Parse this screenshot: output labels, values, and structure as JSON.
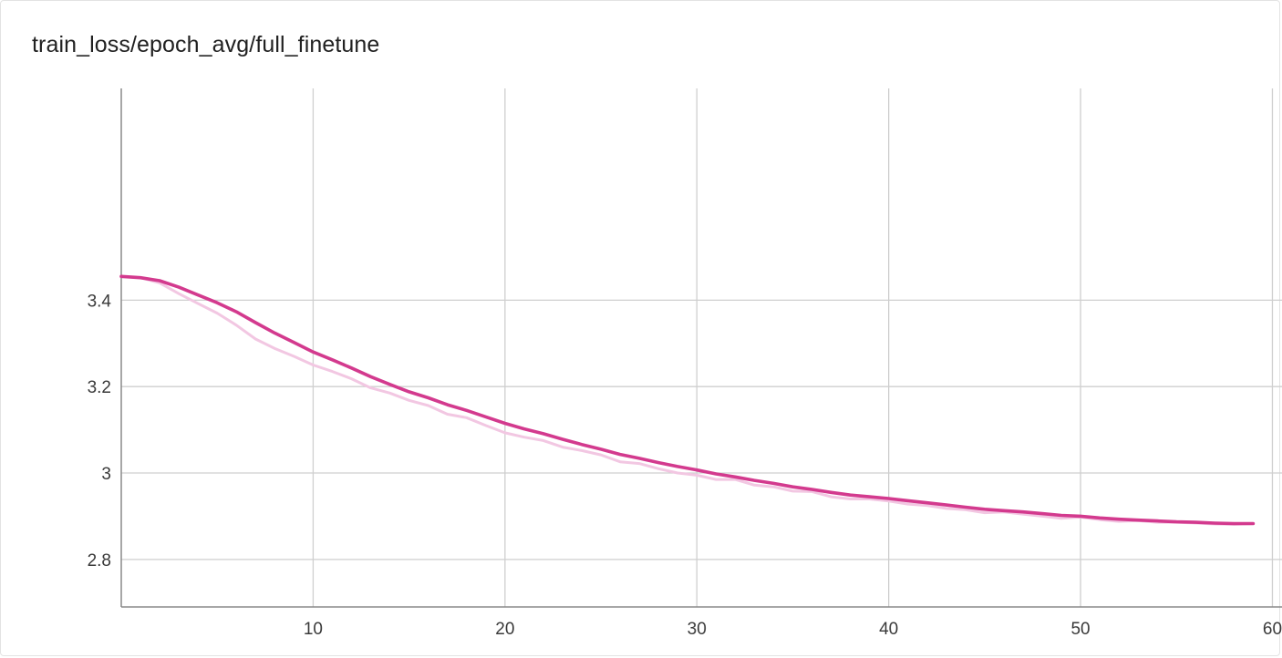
{
  "chart_data": {
    "type": "line",
    "title": "train_loss/epoch_avg/full_finetune",
    "xlabel": "",
    "ylabel": "",
    "xlim": [
      0,
      60.5
    ],
    "ylim": [
      2.69,
      3.89
    ],
    "x_ticks": [
      10,
      20,
      30,
      40,
      50,
      60
    ],
    "y_ticks": [
      2.8,
      3.0,
      3.2,
      3.4
    ],
    "y_tick_labels": [
      "2.8",
      "3",
      "3.2",
      "3.4"
    ],
    "grid": true,
    "colors": {
      "smoothed": "#d33a8e",
      "raw": "#f2c7e2",
      "grid": "#cfcfcf",
      "axis": "#8a8a8a"
    },
    "series": [
      {
        "role": "raw",
        "x": [
          0,
          1,
          2,
          3,
          4,
          5,
          6,
          7,
          8,
          9,
          10,
          11,
          12,
          13,
          14,
          15,
          16,
          17,
          18,
          19,
          20,
          21,
          22,
          23,
          24,
          25,
          26,
          27,
          28,
          29,
          30,
          31,
          32,
          33,
          34,
          35,
          36,
          37,
          38,
          39,
          40,
          41,
          42,
          43,
          44,
          45,
          46,
          47,
          48,
          49,
          50,
          51,
          52,
          53,
          54,
          55,
          56,
          57,
          58,
          59
        ],
        "values": [
          3.455,
          3.452,
          3.44,
          3.415,
          3.392,
          3.37,
          3.342,
          3.31,
          3.288,
          3.27,
          3.25,
          3.235,
          3.218,
          3.197,
          3.185,
          3.168,
          3.156,
          3.136,
          3.128,
          3.11,
          3.093,
          3.083,
          3.075,
          3.06,
          3.052,
          3.042,
          3.026,
          3.022,
          3.01,
          3.0,
          2.995,
          2.985,
          2.985,
          2.972,
          2.968,
          2.958,
          2.957,
          2.945,
          2.94,
          2.94,
          2.935,
          2.928,
          2.925,
          2.918,
          2.915,
          2.908,
          2.91,
          2.905,
          2.9,
          2.895,
          2.898,
          2.892,
          2.888,
          2.89,
          2.886,
          2.886,
          2.884,
          2.882,
          2.881,
          2.883
        ]
      },
      {
        "role": "smoothed",
        "x": [
          0,
          1,
          2,
          3,
          4,
          5,
          6,
          7,
          8,
          9,
          10,
          11,
          12,
          13,
          14,
          15,
          16,
          17,
          18,
          19,
          20,
          21,
          22,
          23,
          24,
          25,
          26,
          27,
          28,
          29,
          30,
          31,
          32,
          33,
          34,
          35,
          36,
          37,
          38,
          39,
          40,
          41,
          42,
          43,
          44,
          45,
          46,
          47,
          48,
          49,
          50,
          51,
          52,
          53,
          54,
          55,
          56,
          57,
          58,
          59
        ],
        "values": [
          3.455,
          3.452,
          3.445,
          3.43,
          3.412,
          3.394,
          3.373,
          3.348,
          3.324,
          3.302,
          3.28,
          3.262,
          3.243,
          3.223,
          3.205,
          3.188,
          3.174,
          3.158,
          3.145,
          3.13,
          3.115,
          3.102,
          3.091,
          3.078,
          3.066,
          3.055,
          3.043,
          3.034,
          3.024,
          3.015,
          3.007,
          2.998,
          2.991,
          2.983,
          2.976,
          2.968,
          2.962,
          2.955,
          2.949,
          2.945,
          2.941,
          2.936,
          2.931,
          2.926,
          2.921,
          2.916,
          2.913,
          2.91,
          2.906,
          2.902,
          2.9,
          2.896,
          2.893,
          2.891,
          2.889,
          2.887,
          2.886,
          2.884,
          2.883,
          2.883
        ]
      }
    ]
  }
}
